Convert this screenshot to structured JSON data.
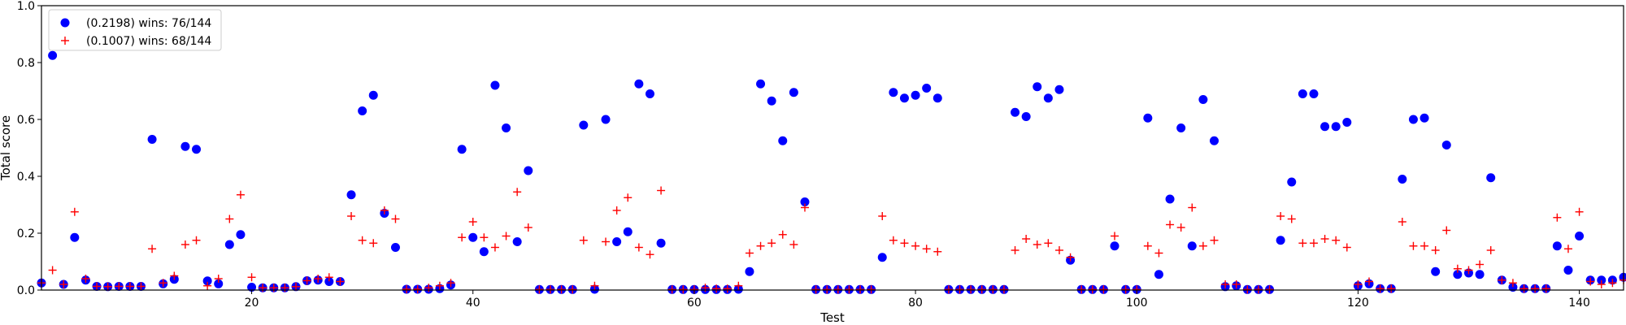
{
  "chart_data": {
    "type": "scatter",
    "title": "",
    "xlabel": "Test",
    "ylabel": "Total score",
    "xlim": [
      1,
      144
    ],
    "ylim": [
      0,
      1.0
    ],
    "xticks": [
      20,
      40,
      60,
      80,
      100,
      120,
      140
    ],
    "yticks": [
      0.0,
      0.2,
      0.4,
      0.6,
      0.8,
      1.0
    ],
    "grid": false,
    "legend_position": "top-left",
    "series": [
      {
        "name": "(0.2198) wins: 76/144",
        "marker": "circle",
        "color": "#0000ff",
        "x": [
          1,
          2,
          3,
          4,
          5,
          6,
          7,
          8,
          9,
          10,
          11,
          12,
          13,
          14,
          15,
          16,
          17,
          18,
          19,
          20,
          21,
          22,
          23,
          24,
          25,
          26,
          27,
          28,
          29,
          30,
          31,
          32,
          33,
          34,
          35,
          36,
          37,
          38,
          39,
          40,
          41,
          42,
          43,
          44,
          45,
          46,
          47,
          48,
          49,
          50,
          51,
          52,
          53,
          54,
          55,
          56,
          57,
          58,
          59,
          60,
          61,
          62,
          63,
          64,
          65,
          66,
          67,
          68,
          69,
          70,
          71,
          72,
          73,
          74,
          75,
          76,
          77,
          78,
          79,
          80,
          81,
          82,
          83,
          84,
          85,
          86,
          87,
          88,
          89,
          90,
          91,
          92,
          93,
          94,
          95,
          96,
          97,
          98,
          99,
          100,
          101,
          102,
          103,
          104,
          105,
          106,
          107,
          108,
          109,
          110,
          111,
          112,
          113,
          114,
          115,
          116,
          117,
          118,
          119,
          120,
          121,
          122,
          123,
          124,
          125,
          126,
          127,
          128,
          129,
          130,
          131,
          132,
          133,
          134,
          135,
          136,
          137,
          138,
          139,
          140,
          141,
          142,
          143,
          144
        ],
        "y": [
          0.025,
          0.825,
          0.02,
          0.185,
          0.035,
          0.013,
          0.012,
          0.013,
          0.013,
          0.013,
          0.53,
          0.022,
          0.038,
          0.505,
          0.495,
          0.032,
          0.022,
          0.16,
          0.195,
          0.01,
          0.008,
          0.008,
          0.008,
          0.012,
          0.033,
          0.035,
          0.03,
          0.03,
          0.335,
          0.63,
          0.685,
          0.27,
          0.15,
          0.003,
          0.003,
          0.003,
          0.005,
          0.018,
          0.495,
          0.185,
          0.135,
          0.72,
          0.57,
          0.17,
          0.42,
          0.002,
          0.002,
          0.002,
          0.002,
          0.58,
          0.003,
          0.6,
          0.17,
          0.205,
          0.725,
          0.69,
          0.165,
          0.002,
          0.002,
          0.002,
          0.002,
          0.002,
          0.002,
          0.003,
          0.065,
          0.725,
          0.665,
          0.525,
          0.695,
          0.31,
          0.002,
          0.002,
          0.002,
          0.002,
          0.002,
          0.002,
          0.115,
          0.695,
          0.675,
          0.685,
          0.71,
          0.675,
          0.002,
          0.002,
          0.002,
          0.002,
          0.002,
          0.002,
          0.625,
          0.61,
          0.715,
          0.675,
          0.705,
          0.105,
          0.002,
          0.002,
          0.002,
          0.155,
          0.002,
          0.002,
          0.605,
          0.055,
          0.32,
          0.57,
          0.155,
          0.67,
          0.525,
          0.012,
          0.015,
          0.002,
          0.002,
          0.002,
          0.175,
          0.38,
          0.69,
          0.69,
          0.575,
          0.575,
          0.59,
          0.015,
          0.022,
          0.005,
          0.005,
          0.39,
          0.6,
          0.605,
          0.065,
          0.51,
          0.055,
          0.06,
          0.055,
          0.395,
          0.035,
          0.01,
          0.005,
          0.005,
          0.005,
          0.155,
          0.07,
          0.19,
          0.035,
          0.035,
          0.035,
          0.045
        ]
      },
      {
        "name": "(0.1007) wins: 68/144",
        "marker": "plus",
        "color": "#ff0000",
        "x": [
          1,
          2,
          3,
          4,
          5,
          6,
          7,
          8,
          9,
          10,
          11,
          12,
          13,
          14,
          15,
          16,
          17,
          18,
          19,
          20,
          21,
          22,
          23,
          24,
          25,
          26,
          27,
          28,
          29,
          30,
          31,
          32,
          33,
          34,
          35,
          36,
          37,
          38,
          39,
          40,
          41,
          42,
          43,
          44,
          45,
          46,
          47,
          48,
          49,
          50,
          51,
          52,
          53,
          54,
          55,
          56,
          57,
          58,
          59,
          60,
          61,
          62,
          63,
          64,
          65,
          66,
          67,
          68,
          69,
          70,
          71,
          72,
          73,
          74,
          75,
          76,
          77,
          78,
          79,
          80,
          81,
          82,
          83,
          84,
          85,
          86,
          87,
          88,
          89,
          90,
          91,
          92,
          93,
          94,
          95,
          96,
          97,
          98,
          99,
          100,
          101,
          102,
          103,
          104,
          105,
          106,
          107,
          108,
          109,
          110,
          111,
          112,
          113,
          114,
          115,
          116,
          117,
          118,
          119,
          120,
          121,
          122,
          123,
          124,
          125,
          126,
          127,
          128,
          129,
          130,
          131,
          132,
          133,
          134,
          135,
          136,
          137,
          138,
          139,
          140,
          141,
          142,
          143,
          144
        ],
        "y": [
          0.025,
          0.07,
          0.02,
          0.275,
          0.04,
          0.013,
          0.012,
          0.013,
          0.013,
          0.013,
          0.145,
          0.025,
          0.05,
          0.16,
          0.175,
          0.015,
          0.04,
          0.25,
          0.335,
          0.045,
          0.008,
          0.008,
          0.008,
          0.012,
          0.033,
          0.04,
          0.045,
          0.03,
          0.26,
          0.175,
          0.165,
          0.28,
          0.25,
          0.003,
          0.003,
          0.008,
          0.015,
          0.025,
          0.185,
          0.24,
          0.185,
          0.15,
          0.19,
          0.345,
          0.22,
          0.002,
          0.002,
          0.002,
          0.002,
          0.175,
          0.015,
          0.17,
          0.28,
          0.325,
          0.15,
          0.125,
          0.35,
          0.002,
          0.002,
          0.002,
          0.008,
          0.005,
          0.005,
          0.015,
          0.13,
          0.155,
          0.165,
          0.195,
          0.16,
          0.29,
          0.002,
          0.002,
          0.002,
          0.002,
          0.002,
          0.002,
          0.26,
          0.175,
          0.165,
          0.155,
          0.145,
          0.135,
          0.002,
          0.002,
          0.002,
          0.002,
          0.002,
          0.002,
          0.14,
          0.18,
          0.16,
          0.165,
          0.14,
          0.115,
          0.002,
          0.002,
          0.002,
          0.19,
          0.002,
          0.002,
          0.155,
          0.13,
          0.23,
          0.22,
          0.29,
          0.155,
          0.175,
          0.02,
          0.02,
          0.002,
          0.002,
          0.002,
          0.26,
          0.25,
          0.165,
          0.165,
          0.18,
          0.175,
          0.15,
          0.02,
          0.03,
          0.005,
          0.005,
          0.24,
          0.155,
          0.155,
          0.14,
          0.21,
          0.075,
          0.07,
          0.09,
          0.14,
          0.035,
          0.025,
          0.005,
          0.005,
          0.005,
          0.255,
          0.145,
          0.275,
          0.03,
          0.02,
          0.025,
          0.035
        ]
      }
    ]
  }
}
